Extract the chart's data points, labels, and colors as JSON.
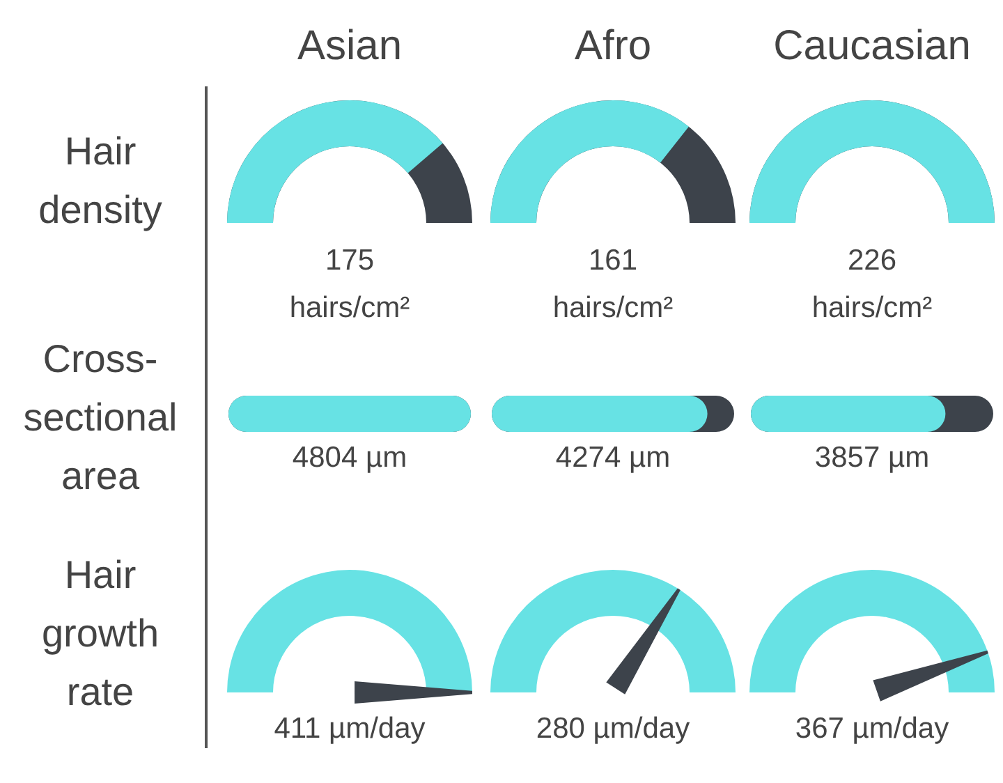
{
  "chart_data": [
    {
      "type": "other",
      "ylabel": "Hair density",
      "categories": [
        "Asian",
        "Afro",
        "Caucasian"
      ],
      "values": [
        175,
        161,
        226
      ],
      "value_labels": [
        "175 hairs/cm²",
        "161 hairs/cm²",
        "226 hairs/cm²"
      ],
      "color": "#67e2e4"
    },
    {
      "type": "other",
      "ylabel": "Cross-sectional area",
      "categories": [
        null,
        null,
        null
      ],
      "values": [
        4804,
        4274,
        3857
      ],
      "value_labels": [
        "4804 µm",
        "4274 µm",
        "3857 µm"
      ],
      "color": "#67e2e4"
    },
    {
      "type": "other",
      "ylabel": "Hair growth rate",
      "needle": true,
      "categories": [
        null,
        null,
        null
      ],
      "values": [
        411,
        280,
        367
      ],
      "value_labels": [
        "411 µm/day",
        "280 µm/day",
        "367 µm/day"
      ],
      "color": "#67e2e4"
    }
  ]
}
